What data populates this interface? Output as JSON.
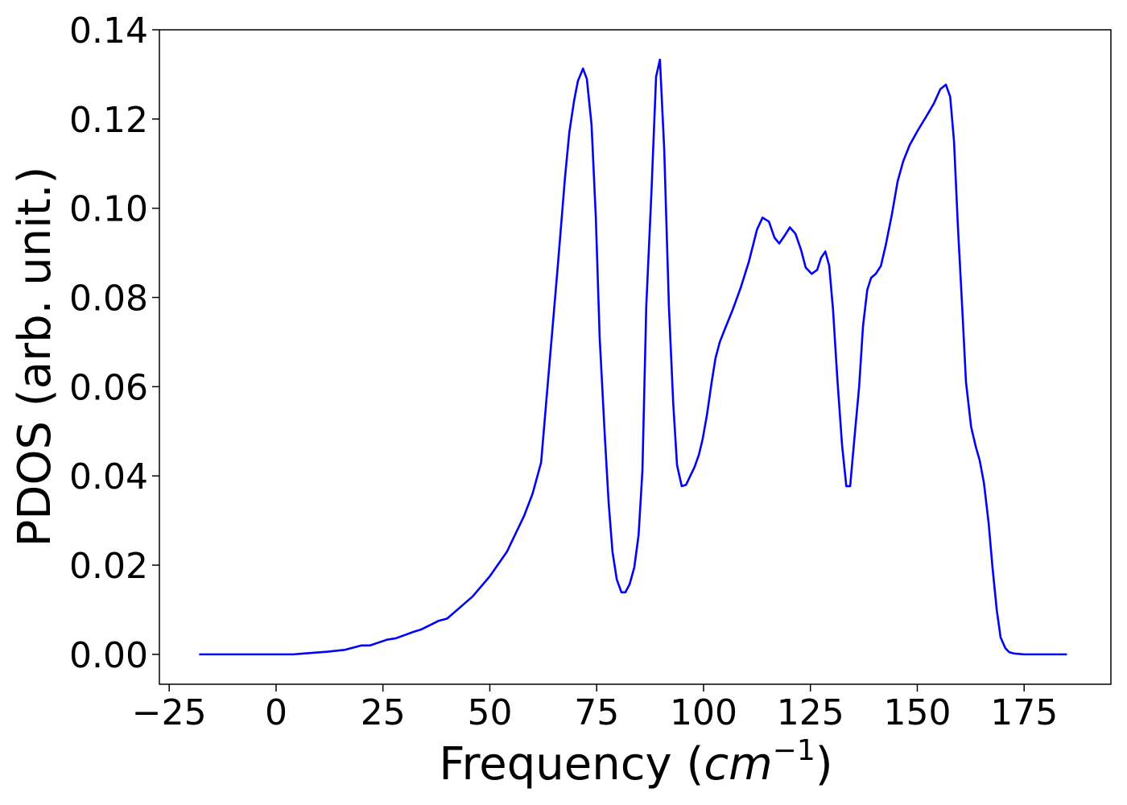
{
  "chart_data": {
    "type": "line",
    "xlabel": [
      "Frequency (",
      "cm",
      "−1",
      ")"
    ],
    "ylabel": "PDOS (arb. unit.)",
    "color": "#0000ff",
    "xlim": [
      -27.3,
      195.3
    ],
    "ylim": [
      -0.0067,
      0.14
    ],
    "xticks": [
      {
        "value": -25,
        "label": "−25"
      },
      0,
      25,
      50,
      75,
      100,
      125,
      150,
      175
    ],
    "yticks": [
      {
        "value": 0,
        "label": "0.00"
      },
      0.02,
      0.04,
      0.06,
      0.08,
      {
        "value": 0.1,
        "label": "0.10"
      },
      0.12,
      0.14
    ],
    "x": [
      -18,
      -10,
      0,
      4,
      8,
      12,
      16,
      20,
      22,
      26,
      28,
      32,
      34,
      38,
      40,
      43,
      46,
      50,
      54,
      58,
      60,
      62,
      63.5,
      65.9,
      67.6,
      68.6,
      69.7,
      70.6,
      71.8,
      72.7,
      73.8,
      74.8,
      75.7,
      76.9,
      77.8,
      78.7,
      79.7,
      80.8,
      81.7,
      82.7,
      83.8,
      84.8,
      85.7,
      86.6,
      87.8,
      88.9,
      89.8,
      90.8,
      91.9,
      92.9,
      93.8,
      94.9,
      95.9,
      96.8,
      97.9,
      98.9,
      99.8,
      100.8,
      101.9,
      102.8,
      103.8,
      104.9,
      106.8,
      108.7,
      110.6,
      112.5,
      113.8,
      115.3,
      116.6,
      117.7,
      119.0,
      120.2,
      121.5,
      122.8,
      123.9,
      125.3,
      126.6,
      127.5,
      128.5,
      129.4,
      130.3,
      131.3,
      132.4,
      133.4,
      134.3,
      135.2,
      136.4,
      137.3,
      138.3,
      139.2,
      140.3,
      141.5,
      142.6,
      144.1,
      145.4,
      146.7,
      148.2,
      150.1,
      152.0,
      153.9,
      155.4,
      156.7,
      157.7,
      158.6,
      159.5,
      160.5,
      161.4,
      162.6,
      163.7,
      164.6,
      165.6,
      166.7,
      167.6,
      168.6,
      169.5,
      170.6,
      171.5,
      172.6,
      175,
      180,
      185
    ],
    "values": [
      0,
      0,
      0,
      0,
      0.0003,
      0.0006,
      0.001,
      0.002,
      0.002,
      0.0033,
      0.0036,
      0.005,
      0.0056,
      0.0075,
      0.008,
      0.0105,
      0.013,
      0.0175,
      0.023,
      0.031,
      0.036,
      0.043,
      0.06,
      0.087,
      0.107,
      0.117,
      0.124,
      0.1285,
      0.1313,
      0.129,
      0.1187,
      0.098,
      0.071,
      0.049,
      0.034,
      0.023,
      0.0168,
      0.0139,
      0.0139,
      0.0157,
      0.0195,
      0.0267,
      0.0411,
      0.078,
      0.1033,
      0.1295,
      0.1333,
      0.1132,
      0.078,
      0.0564,
      0.0424,
      0.0377,
      0.038,
      0.0398,
      0.042,
      0.0447,
      0.0483,
      0.0537,
      0.061,
      0.0664,
      0.07,
      0.0727,
      0.0772,
      0.0822,
      0.088,
      0.0952,
      0.0979,
      0.097,
      0.0934,
      0.0921,
      0.0939,
      0.0957,
      0.0943,
      0.0907,
      0.0867,
      0.0853,
      0.0862,
      0.0889,
      0.0903,
      0.0871,
      0.0772,
      0.0618,
      0.047,
      0.0377,
      0.0377,
      0.0474,
      0.06,
      0.0735,
      0.0817,
      0.0844,
      0.0853,
      0.0871,
      0.0916,
      0.0988,
      0.106,
      0.1105,
      0.1141,
      0.1174,
      0.1204,
      0.1235,
      0.1267,
      0.1277,
      0.125,
      0.115,
      0.0961,
      0.078,
      0.061,
      0.051,
      0.0465,
      0.0435,
      0.0384,
      0.0294,
      0.0195,
      0.0099,
      0.0038,
      0.0014,
      0.0005,
      0.0002,
      0,
      0,
      0
    ]
  }
}
